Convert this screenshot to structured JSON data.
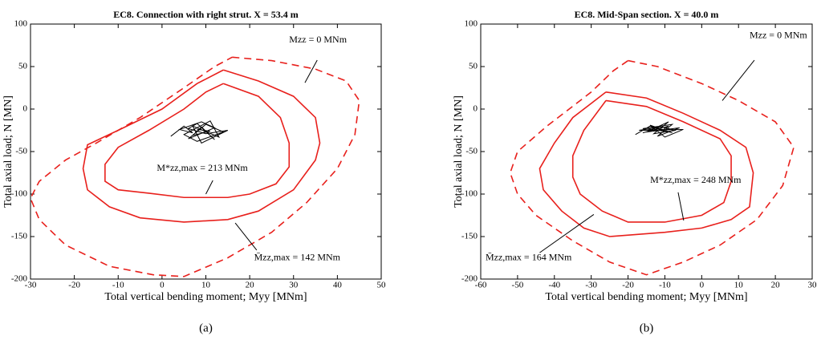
{
  "chart_data": [
    {
      "type": "line",
      "title": "EC8. Connection with right strut. X = 53.4 m",
      "xlabel": "Total vertical bending moment; Myy [MNm]",
      "ylabel": "Total axial load; N [MN]",
      "caption": "(a)",
      "xlim": [
        -30,
        50
      ],
      "xticks": [
        -30,
        -20,
        -10,
        0,
        10,
        20,
        30,
        40,
        50
      ],
      "ylim": [
        -200,
        100
      ],
      "yticks": [
        -200,
        -150,
        -100,
        -50,
        0,
        50,
        100
      ],
      "series": [
        {
          "name": "Mzz = 0 MNm",
          "color": "#e8201c",
          "dashed": true,
          "x": [
            16,
            25,
            35,
            42,
            45,
            44,
            40,
            33,
            25,
            15,
            5,
            -2,
            -12,
            -22,
            -28,
            -30,
            -28,
            -22,
            -15,
            -5,
            5,
            12,
            16
          ],
          "y": [
            61,
            57,
            47,
            33,
            10,
            -30,
            -70,
            -110,
            -145,
            -175,
            -197,
            -195,
            -185,
            -160,
            -130,
            -105,
            -85,
            -60,
            -40,
            -10,
            25,
            50,
            61
          ]
        },
        {
          "name": "M̄zz,max = 142 MNm",
          "color": "#e8201c",
          "dashed": false,
          "x": [
            14,
            22,
            30,
            35,
            36,
            35,
            30,
            22,
            15,
            5,
            -5,
            -12,
            -17,
            -18,
            -17,
            -10,
            0,
            8,
            14
          ],
          "y": [
            46,
            33,
            15,
            -10,
            -40,
            -60,
            -95,
            -120,
            -130,
            -133,
            -128,
            -115,
            -95,
            -70,
            -42,
            -25,
            0,
            30,
            46
          ]
        },
        {
          "name": "M*zz,max = 213 MNm",
          "color": "#e8201c",
          "dashed": false,
          "x": [
            14,
            22,
            27,
            29,
            29,
            26,
            20,
            15,
            5,
            -3,
            -10,
            -13,
            -13,
            -10,
            -3,
            5,
            10,
            14
          ],
          "y": [
            30,
            15,
            -10,
            -40,
            -68,
            -88,
            -100,
            -104,
            -104,
            -99,
            -95,
            -85,
            -65,
            -45,
            -25,
            0,
            20,
            30
          ]
        },
        {
          "color": "#000000",
          "dashed": false,
          "x": [
            2,
            5,
            7,
            4,
            9,
            12,
            6,
            10,
            14,
            8,
            5,
            11,
            13,
            7,
            9,
            15,
            10,
            6,
            8,
            12,
            9,
            7,
            11,
            8
          ],
          "y": [
            -32,
            -20,
            -28,
            -24,
            -15,
            -22,
            -35,
            -18,
            -27,
            -38,
            -30,
            -14,
            -33,
            -20,
            -40,
            -25,
            -29,
            -23,
            -17,
            -36,
            -21,
            -31,
            -26,
            -24
          ]
        }
      ]
    },
    {
      "type": "line",
      "title": "EC8. Mid-Span section. X = 40.0 m",
      "xlabel": "Total vertical bending moment; Myy [MNm]",
      "ylabel": "Total axial load; N [MN]",
      "caption": "(b)",
      "xlim": [
        -60,
        30
      ],
      "xticks": [
        -60,
        -50,
        -40,
        -30,
        -20,
        -10,
        0,
        10,
        20,
        30
      ],
      "ylim": [
        -200,
        100
      ],
      "yticks": [
        -200,
        -150,
        -100,
        -50,
        0,
        50,
        100
      ],
      "series": [
        {
          "name": "Mzz = 0 MNm",
          "color": "#e8201c",
          "dashed": true,
          "x": [
            -20,
            -12,
            0,
            10,
            20,
            25,
            22,
            15,
            5,
            -5,
            -15,
            -25,
            -35,
            -45,
            -50,
            -52,
            -50,
            -42,
            -30,
            -24,
            -20
          ],
          "y": [
            57,
            50,
            30,
            10,
            -15,
            -45,
            -90,
            -130,
            -160,
            -180,
            -195,
            -180,
            -155,
            -125,
            -100,
            -75,
            -50,
            -20,
            20,
            45,
            57
          ]
        },
        {
          "name": "M̄zz,max = 164 MNm",
          "color": "#e8201c",
          "dashed": false,
          "x": [
            -26,
            -15,
            -5,
            5,
            12,
            14,
            13,
            8,
            0,
            -10,
            -25,
            -32,
            -38,
            -43,
            -44,
            -40,
            -35,
            -26
          ],
          "y": [
            20,
            13,
            -5,
            -25,
            -45,
            -75,
            -115,
            -130,
            -140,
            -145,
            -150,
            -140,
            -120,
            -95,
            -70,
            -40,
            -10,
            20
          ]
        },
        {
          "name": "M*zz,max = 248 MNm",
          "color": "#e8201c",
          "dashed": false,
          "x": [
            -26,
            -15,
            -5,
            5,
            8,
            8,
            6,
            0,
            -10,
            -20,
            -27,
            -33,
            -35,
            -35,
            -32,
            -26
          ],
          "y": [
            10,
            3,
            -15,
            -35,
            -55,
            -85,
            -110,
            -125,
            -133,
            -133,
            -120,
            -100,
            -80,
            -55,
            -25,
            10
          ]
        },
        {
          "color": "#000000",
          "dashed": false,
          "x": [
            -18,
            -14,
            -10,
            -16,
            -8,
            -12,
            -6,
            -15,
            -9,
            -13,
            -7,
            -11,
            -17,
            -5,
            -10,
            -14,
            -8,
            -12,
            -16,
            -9,
            -11
          ],
          "y": [
            -30,
            -20,
            -26,
            -23,
            -18,
            -32,
            -22,
            -27,
            -15,
            -29,
            -25,
            -21,
            -25,
            -24,
            -33,
            -19,
            -28,
            -23,
            -28,
            -20,
            -26
          ]
        }
      ]
    }
  ]
}
